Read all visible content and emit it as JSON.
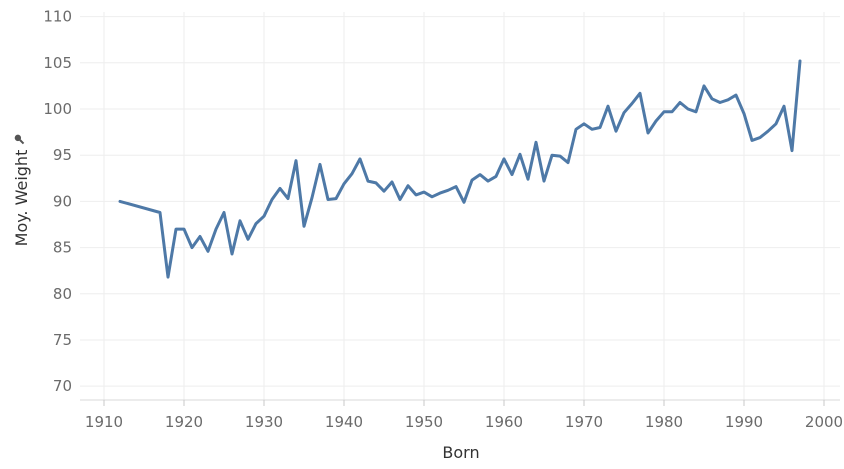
{
  "chart_data": {
    "type": "line",
    "xlabel": "Born",
    "ylabel": "Moy. Weight",
    "ylabel_icon": "pin-icon",
    "xlim": [
      1907,
      2002
    ],
    "ylim": [
      68.5,
      110.5
    ],
    "xticks": [
      1910,
      1920,
      1930,
      1940,
      1950,
      1960,
      1970,
      1980,
      1990,
      2000
    ],
    "yticks": [
      70,
      75,
      80,
      85,
      90,
      95,
      100,
      105,
      110
    ],
    "grid": true,
    "line_color": "#4e79a7",
    "series": [
      {
        "x": [
          1912,
          1917,
          1918,
          1919,
          1920,
          1921,
          1922,
          1923,
          1924,
          1925,
          1926,
          1927,
          1928,
          1929,
          1930,
          1931,
          1932,
          1933,
          1934,
          1935,
          1936,
          1937,
          1938,
          1939,
          1940,
          1941,
          1942,
          1943,
          1944,
          1945,
          1946,
          1947,
          1948,
          1949,
          1950,
          1951,
          1952,
          1953,
          1954,
          1955,
          1956,
          1957,
          1958,
          1959,
          1960,
          1961,
          1962,
          1963,
          1964,
          1965,
          1966,
          1967,
          1968,
          1969,
          1970,
          1971,
          1972,
          1973,
          1974,
          1975,
          1976,
          1977,
          1978,
          1979,
          1980,
          1981,
          1982,
          1983,
          1984,
          1985,
          1986,
          1987,
          1988,
          1989,
          1990,
          1991,
          1992,
          1993,
          1994,
          1995,
          1996,
          1997
        ],
        "y": [
          90.0,
          88.8,
          81.8,
          87.0,
          87.0,
          85.0,
          86.2,
          84.6,
          87.0,
          88.8,
          84.3,
          87.9,
          85.9,
          87.6,
          88.4,
          90.2,
          91.4,
          90.3,
          94.4,
          87.3,
          90.4,
          94.0,
          90.2,
          90.3,
          91.9,
          93.0,
          94.6,
          92.2,
          92.0,
          91.1,
          92.1,
          90.2,
          91.7,
          90.7,
          91.0,
          90.5,
          90.9,
          91.2,
          91.6,
          89.9,
          92.3,
          92.9,
          92.2,
          92.7,
          94.6,
          92.9,
          95.1,
          92.4,
          96.4,
          92.2,
          95.0,
          94.9,
          94.2,
          97.8,
          98.4,
          97.8,
          98.0,
          100.3,
          97.6,
          99.6,
          100.6,
          101.7,
          97.4,
          98.7,
          99.7,
          99.7,
          100.7,
          100.0,
          99.7,
          102.5,
          101.1,
          100.7,
          101.0,
          101.5,
          99.5,
          96.6,
          96.9,
          97.6,
          98.4,
          100.3,
          95.5,
          105.2
        ]
      }
    ]
  }
}
